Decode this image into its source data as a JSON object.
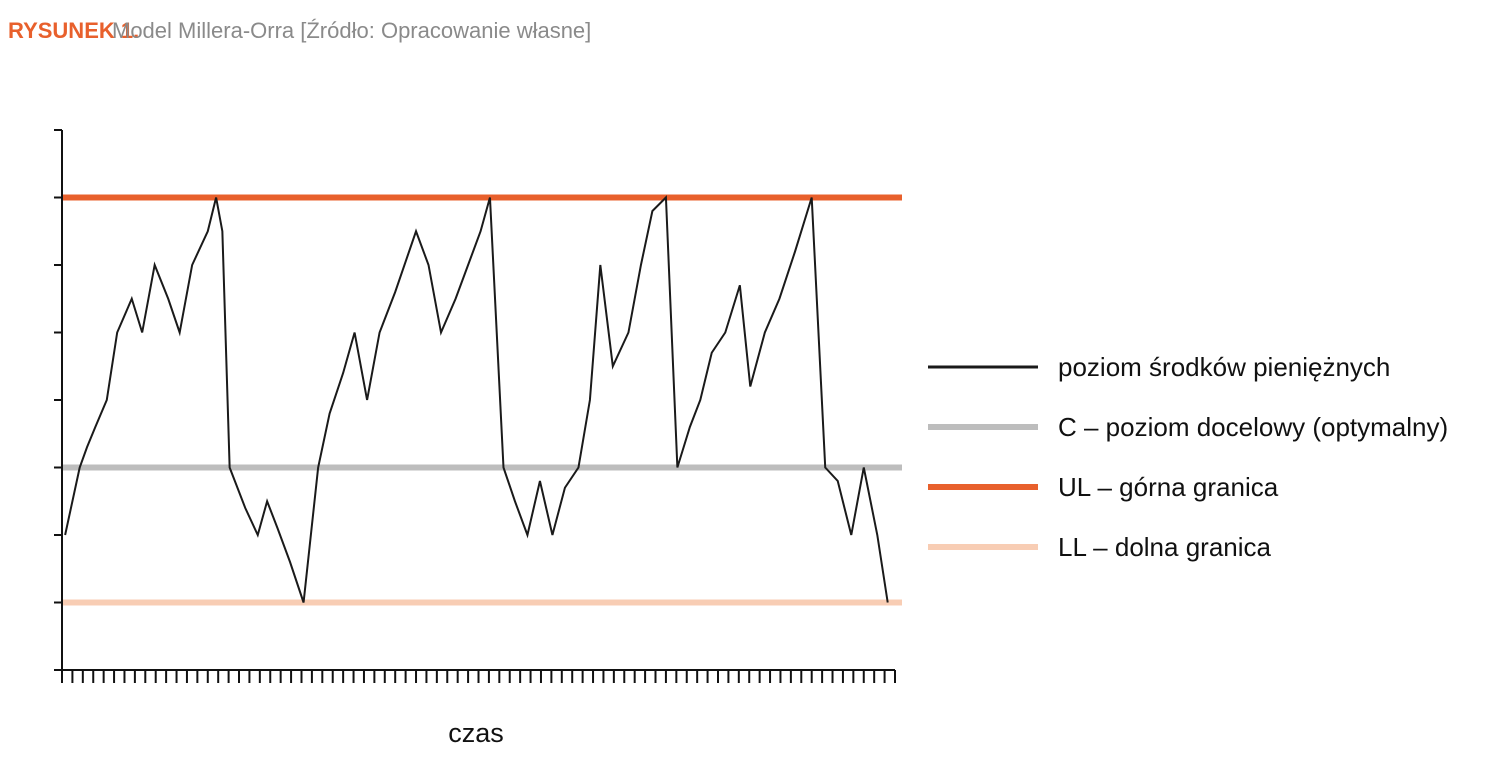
{
  "chart_data": {
    "type": "line",
    "figure_label": "RYSUNEK 1.",
    "title": "Model Millera-Orra [Źródło: Opracowanie własne]",
    "x_label": "czas",
    "x": [
      0.3,
      1.7,
      2.4,
      3.2,
      4.3,
      5.3,
      6.7,
      7.7,
      8.9,
      10.2,
      11.3,
      12.5,
      14.0,
      14.8,
      15.4,
      16.1,
      16.6,
      17.6,
      18.8,
      19.7,
      20.7,
      21.9,
      23.2,
      24.6,
      25.7,
      27.0,
      28.1,
      29.3,
      30.5,
      32.0,
      34.0,
      35.2,
      36.4,
      37.8,
      39.0,
      40.2,
      41.1,
      42.4,
      43.5,
      44.7,
      45.9,
      47.1,
      48.3,
      49.6,
      50.7,
      51.7,
      52.9,
      54.4,
      55.6,
      56.7,
      58.0,
      59.1,
      60.3,
      61.3,
      62.4,
      63.7,
      65.1,
      66.1,
      67.5,
      68.9,
      70.4,
      72.0,
      73.3,
      74.5,
      75.8,
      77.0,
      78.3,
      79.3
    ],
    "series": [
      {
        "name": "poziom środków pieniężnych",
        "color": "#1a1a1a",
        "values": [
          2.0,
          3.0,
          3.3,
          3.6,
          4.0,
          5.0,
          5.5,
          5.0,
          6.0,
          5.5,
          5.0,
          6.0,
          6.5,
          7.0,
          6.5,
          3.0,
          2.8,
          2.4,
          2.0,
          2.5,
          2.1,
          1.6,
          1.0,
          3.0,
          3.8,
          4.4,
          5.0,
          4.0,
          5.0,
          5.6,
          6.5,
          6.0,
          5.0,
          5.5,
          6.0,
          6.5,
          7.0,
          3.0,
          2.5,
          2.0,
          2.8,
          2.0,
          2.7,
          3.0,
          4.0,
          6.0,
          4.5,
          5.0,
          6.0,
          6.8,
          7.0,
          3.0,
          3.6,
          4.0,
          4.7,
          5.0,
          5.7,
          4.2,
          5.0,
          5.5,
          6.2,
          7.0,
          3.0,
          2.8,
          2.0,
          3.0,
          2.0,
          1.0
        ]
      }
    ],
    "reference_lines": [
      {
        "name": "C – poziom docelowy (optymalny)",
        "color": "#bdbdbd",
        "value": 3
      },
      {
        "name": "UL – górna granica",
        "color": "#e8602c",
        "value": 7
      },
      {
        "name": "LL – dolna granica",
        "color": "#f8cdb4",
        "value": 1
      }
    ],
    "xlim": [
      0,
      80
    ],
    "xticks": [
      0,
      1,
      2,
      3,
      4,
      5,
      6,
      7,
      8,
      9,
      10,
      11,
      12,
      13,
      14,
      15,
      16,
      17,
      18,
      19,
      20,
      21,
      22,
      23,
      24,
      25,
      26,
      27,
      28,
      29,
      30,
      31,
      32,
      33,
      34,
      35,
      36,
      37,
      38,
      39,
      40,
      41,
      42,
      43,
      44,
      45,
      46,
      47,
      48,
      49,
      50,
      51,
      52,
      53,
      54,
      55,
      56,
      57,
      58,
      59,
      60,
      61,
      62,
      63,
      64,
      65,
      66,
      67,
      68,
      69,
      70,
      71,
      72,
      73,
      74,
      75,
      76,
      77,
      78,
      79,
      80
    ],
    "ylim": [
      0,
      8
    ],
    "yticks": [
      0,
      1,
      2,
      3,
      4,
      5,
      6,
      7,
      8
    ]
  }
}
